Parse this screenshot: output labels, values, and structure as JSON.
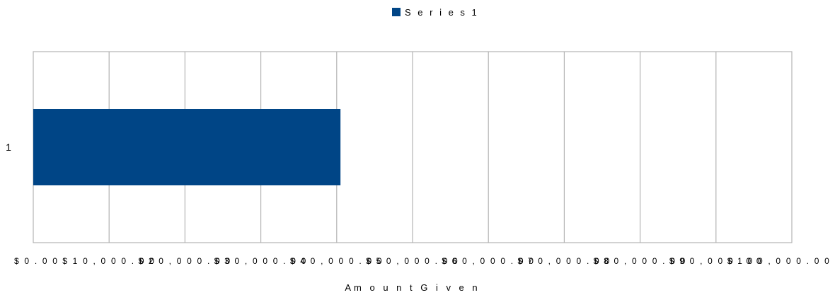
{
  "chart_data": {
    "type": "bar",
    "orientation": "horizontal",
    "categories": [
      "1"
    ],
    "series": [
      {
        "name": "Series1",
        "values": [
          40500
        ],
        "color": "#004586"
      }
    ],
    "xlabel": "Am o u n t G i v e n",
    "ylabel": "",
    "xlim": [
      0,
      100000
    ],
    "x_ticks": [
      0,
      10000,
      20000,
      30000,
      40000,
      50000,
      60000,
      70000,
      80000,
      90000,
      100000
    ],
    "x_tick_labels": [
      "$ 0 . 0 0",
      "$ 1 0 , 0 0 0 . 0 0",
      "$ 2 0 , 0 0 0 . 0 0",
      "$ 3 0 , 0 0 0 . 0 0",
      "$ 4 0 , 0 0 0 . 0 0",
      "$ 5 0 , 0 0 0 . 0 0",
      "$ 6 0 , 0 0 0 . 0 0",
      "$ 7 0 , 0 0 0 . 0 0",
      "$ 8 0 , 0 0 0 . 0 0",
      "$ 9 0 , 0 0 0 . 0 0",
      "$ 1 0 0 , 0 0 0 . 0 0"
    ],
    "grid": true,
    "gridline_color": "#b3b3b3",
    "legend": {
      "position": "top",
      "entries": [
        "S e r i e s 1"
      ]
    }
  }
}
